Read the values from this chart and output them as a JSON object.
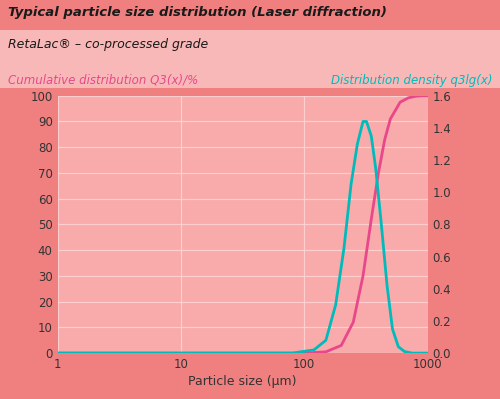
{
  "title1": "Typical particle size distribution (Laser diffraction)",
  "title2": "RetaLac® – co-processed grade",
  "left_label": "Cumulative distribution Q3(x)/%",
  "right_label": "Distribution density q3lg(x)",
  "xlabel": "Particle size (µm)",
  "bg_color_top": "#F08080",
  "bg_color_mid": "#F9B8B8",
  "bg_color_plot": "#F9AAAA",
  "grid_color": "#FFCECE",
  "title1_color": "#1a1a1a",
  "title2_color": "#1a1a1a",
  "left_label_color": "#E8488A",
  "right_label_color": "#00BBBB",
  "curve_cumul_color": "#E8488A",
  "curve_density_color": "#00BBBB",
  "xlim_log": [
    1,
    1000
  ],
  "ylim_left": [
    0,
    100
  ],
  "ylim_right": [
    0,
    1.6
  ],
  "yticks_left": [
    0,
    10,
    20,
    30,
    40,
    50,
    60,
    70,
    80,
    90,
    100
  ],
  "yticks_right": [
    0,
    0.2,
    0.4,
    0.6,
    0.8,
    1.0,
    1.2,
    1.4,
    1.6
  ],
  "cumul_x": [
    1,
    10,
    50,
    100,
    150,
    200,
    250,
    300,
    350,
    400,
    450,
    500,
    600,
    700,
    800,
    900,
    1000
  ],
  "cumul_y": [
    0,
    0,
    0,
    0,
    0.5,
    3.0,
    12.0,
    30.0,
    52.0,
    70.0,
    83.0,
    91.0,
    97.5,
    99.2,
    99.8,
    100.0,
    100.0
  ],
  "density_x": [
    1,
    10,
    80,
    120,
    150,
    180,
    210,
    240,
    270,
    300,
    320,
    350,
    380,
    420,
    470,
    520,
    580,
    650,
    750,
    850,
    1000
  ],
  "density_y": [
    0,
    0,
    0,
    0.02,
    0.08,
    0.3,
    0.65,
    1.05,
    1.3,
    1.44,
    1.44,
    1.35,
    1.15,
    0.82,
    0.42,
    0.15,
    0.04,
    0.01,
    0.0,
    0.0,
    0.0
  ]
}
